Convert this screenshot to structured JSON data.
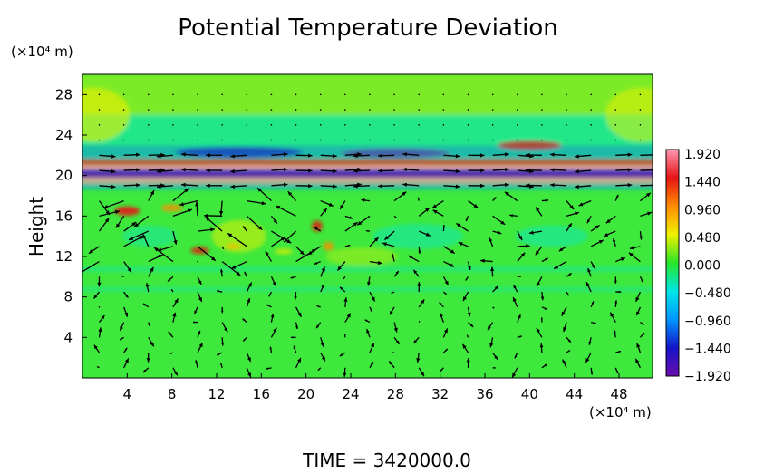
{
  "chart_data": {
    "type": "heatmap",
    "title": "Potential Temperature Deviation",
    "ylabel": "Height",
    "y_unit": "(×10⁴ m)",
    "x_unit": "(×10⁴ m)",
    "xlim": [
      0,
      51
    ],
    "ylim": [
      0,
      30
    ],
    "x_ticks": [
      4,
      8,
      12,
      16,
      20,
      24,
      28,
      32,
      36,
      40,
      44,
      48
    ],
    "y_ticks": [
      4,
      8,
      12,
      16,
      20,
      24,
      28
    ],
    "colorbar": {
      "range": [
        -1.92,
        1.92
      ],
      "tick_labels": [
        "1.920",
        "1.440",
        "0.960",
        "0.480",
        "0.000",
        "−0.480",
        "−0.960",
        "−1.440",
        "−1.920"
      ],
      "colors": [
        "#6a0dad",
        "#1414c8",
        "#0096ff",
        "#00e6e6",
        "#28e628",
        "#f0f000",
        "#ff8c00",
        "#e61414",
        "#ff96b4"
      ]
    },
    "overlay": "velocity vectors",
    "footer": "TIME = 3420000.0"
  },
  "colors": {
    "field_base": "#3ee83c"
  }
}
